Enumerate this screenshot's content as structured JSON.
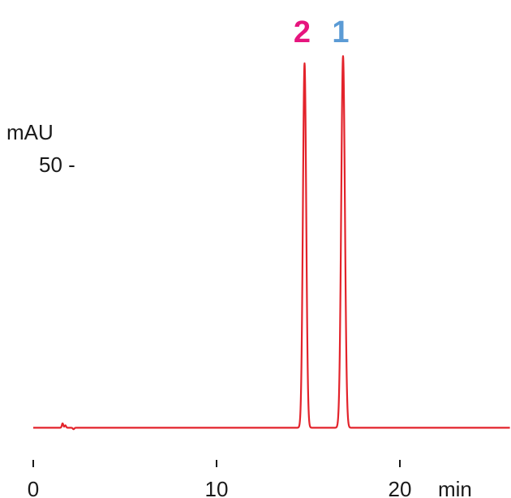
{
  "chart_data": {
    "type": "line",
    "xlabel": "min",
    "ylabel": "mAU",
    "xlim": [
      0,
      26
    ],
    "ylim": [
      -2,
      80
    ],
    "x_ticks": [
      {
        "value": 0,
        "label": "0"
      },
      {
        "value": 10,
        "label": "10"
      },
      {
        "value": 20,
        "label": "20"
      }
    ],
    "y_ticks": [
      {
        "value": 50,
        "label": "50 -"
      }
    ],
    "series": [
      {
        "color": "#e3232b",
        "baseline": 0.1,
        "peaks": [
          {
            "label": "2",
            "label_color": "#e6157e",
            "retention_time": 14.8,
            "height": 75,
            "width": 0.09
          },
          {
            "label": "1",
            "label_color": "#5b9bd5",
            "retention_time": 16.9,
            "height": 76.5,
            "width": 0.1
          }
        ],
        "noise": [
          {
            "x": 1.6,
            "y": 0.9
          },
          {
            "x": 1.75,
            "y": 0.5
          },
          {
            "x": 2.2,
            "y": -0.3
          }
        ]
      }
    ]
  }
}
